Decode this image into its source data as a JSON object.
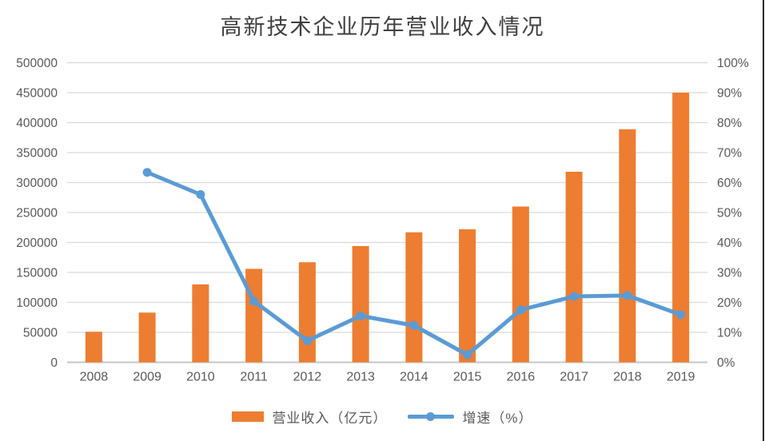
{
  "page": {
    "background": "#ffffff",
    "right_border_color": "#262626"
  },
  "chart_data": {
    "type": "bar",
    "subtype": "combo-bar-line-dual-axis",
    "title": "高新技术企业历年营业收入情况",
    "categories": [
      "2008",
      "2009",
      "2010",
      "2011",
      "2012",
      "2013",
      "2014",
      "2015",
      "2016",
      "2017",
      "2018",
      "2019"
    ],
    "series": [
      {
        "name": "营业收入（亿元）",
        "type": "bar",
        "axis": "left",
        "color": "#ED7D31",
        "values": [
          51000,
          83000,
          130000,
          156000,
          167000,
          194000,
          217000,
          222000,
          260000,
          318000,
          389000,
          450000
        ]
      },
      {
        "name": "增速（%）",
        "type": "line",
        "axis": "right",
        "color": "#5B9BD5",
        "values": [
          null,
          63.4,
          56.0,
          20.4,
          7.2,
          15.5,
          12.3,
          2.5,
          17.5,
          22.0,
          22.3,
          15.9
        ]
      }
    ],
    "left_axis": {
      "min": 0,
      "max": 500000,
      "step": 50000,
      "tick_labels_top_to_bottom": [
        "500000",
        "450000",
        "400000",
        "350000",
        "300000",
        "250000",
        "200000",
        "150000",
        "100000",
        "50000",
        "0"
      ]
    },
    "right_axis": {
      "min": 0,
      "max": 100,
      "step": 10,
      "tick_labels_top_to_bottom": [
        "100%",
        "90%",
        "80%",
        "70%",
        "60%",
        "50%",
        "40%",
        "30%",
        "20%",
        "10%",
        "0%"
      ]
    },
    "grid": true,
    "legend_position": "bottom",
    "colors": {
      "gridline": "#D9D9D9",
      "baseline": "#C6C6C6",
      "axis_text": "#595959",
      "title_text": "#3f3f3f"
    }
  }
}
